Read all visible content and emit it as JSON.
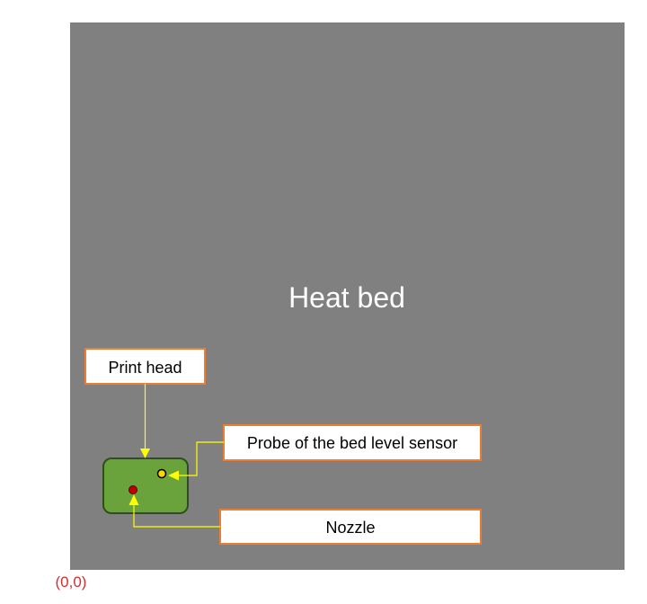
{
  "heat_bed": {
    "label": "Heat bed"
  },
  "callouts": {
    "print_head": "Print head",
    "probe": "Probe of the bed level sensor",
    "nozzle": "Nozzle"
  },
  "origin_label": "(0,0)",
  "colors": {
    "bed": "#808080",
    "bed_text": "#ffffff",
    "print_head_fill": "#6aa33c",
    "print_head_stroke": "#2f4f1a",
    "callout_border": "#ed7d31",
    "arrow": "#ffff00",
    "probe_fill": "#ffd400",
    "nozzle_fill": "#c00000",
    "origin_text": "#d03030"
  }
}
